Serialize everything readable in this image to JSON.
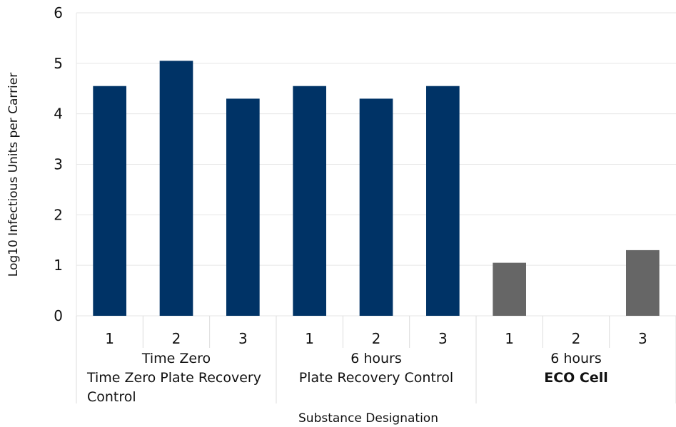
{
  "chart_data": {
    "type": "bar",
    "title": "",
    "xlabel": "Substance Designation",
    "ylabel": "Log10 Infectious Units per Carrier",
    "ylim": [
      0,
      6
    ],
    "yticks": [
      "0",
      "1",
      "2",
      "3",
      "4",
      "5",
      "6"
    ],
    "grid": true,
    "categories": [
      "1",
      "2",
      "3",
      "1",
      "2",
      "3",
      "1",
      "2",
      "3"
    ],
    "groups": [
      {
        "lines": [
          "Time Zero",
          "Time Zero Plate Recovery",
          "Control"
        ],
        "bold_lines": [],
        "color": "#003366",
        "values": [
          4.55,
          5.05,
          4.3
        ]
      },
      {
        "lines": [
          "6 hours",
          "Plate Recovery Control"
        ],
        "bold_lines": [],
        "color": "#003366",
        "values": [
          4.55,
          4.3,
          4.55
        ]
      },
      {
        "lines": [
          "6 hours",
          "ECO Cell"
        ],
        "bold_lines": [
          1
        ],
        "color": "#666666",
        "values": [
          1.05,
          0,
          1.3
        ]
      }
    ],
    "colors": {
      "control": "#003366",
      "treated": "#666666",
      "grid": "#e6e6e6"
    }
  }
}
